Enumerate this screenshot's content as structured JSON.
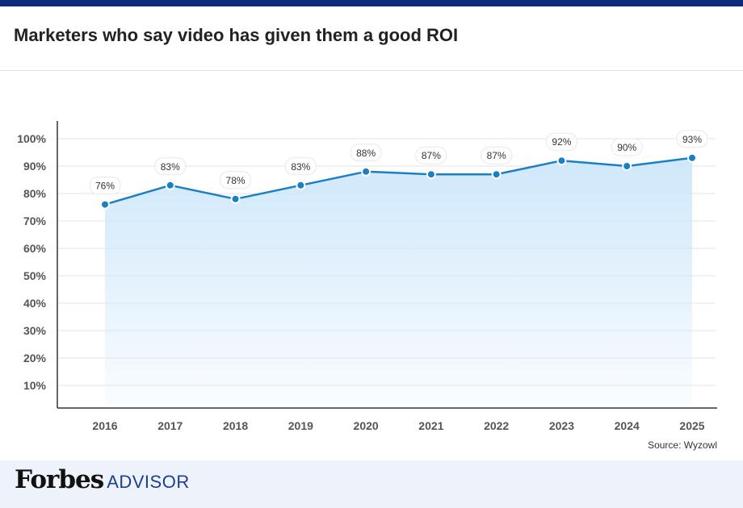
{
  "header": {
    "title": "Marketers who say video has given them a good ROI"
  },
  "source": "Source: Wyzowl",
  "footer": {
    "brand": "Forbes",
    "brand_suffix": "ADVISOR"
  },
  "colors": {
    "top_bar": "#0b2a78",
    "line": "#1b7fc4",
    "fill": "#cfe8fb",
    "brand": "#1d3f93"
  },
  "chart_data": {
    "type": "area",
    "title": "Marketers who say video has given them a good ROI",
    "x": [
      "2016",
      "2017",
      "2018",
      "2019",
      "2020",
      "2021",
      "2022",
      "2023",
      "2024",
      "2025"
    ],
    "values": [
      76,
      83,
      78,
      83,
      88,
      87,
      87,
      92,
      90,
      93
    ],
    "data_labels": [
      "76%",
      "83%",
      "78%",
      "83%",
      "88%",
      "87%",
      "87%",
      "92%",
      "90%",
      "93%"
    ],
    "yticks": [
      10,
      20,
      30,
      40,
      50,
      60,
      70,
      80,
      90,
      100
    ],
    "ytick_labels": [
      "10%",
      "20%",
      "30%",
      "40%",
      "50%",
      "60%",
      "70%",
      "80%",
      "90%",
      "100%"
    ],
    "ylim": [
      0,
      100
    ],
    "xlabel": "",
    "ylabel": "",
    "grid": true
  }
}
